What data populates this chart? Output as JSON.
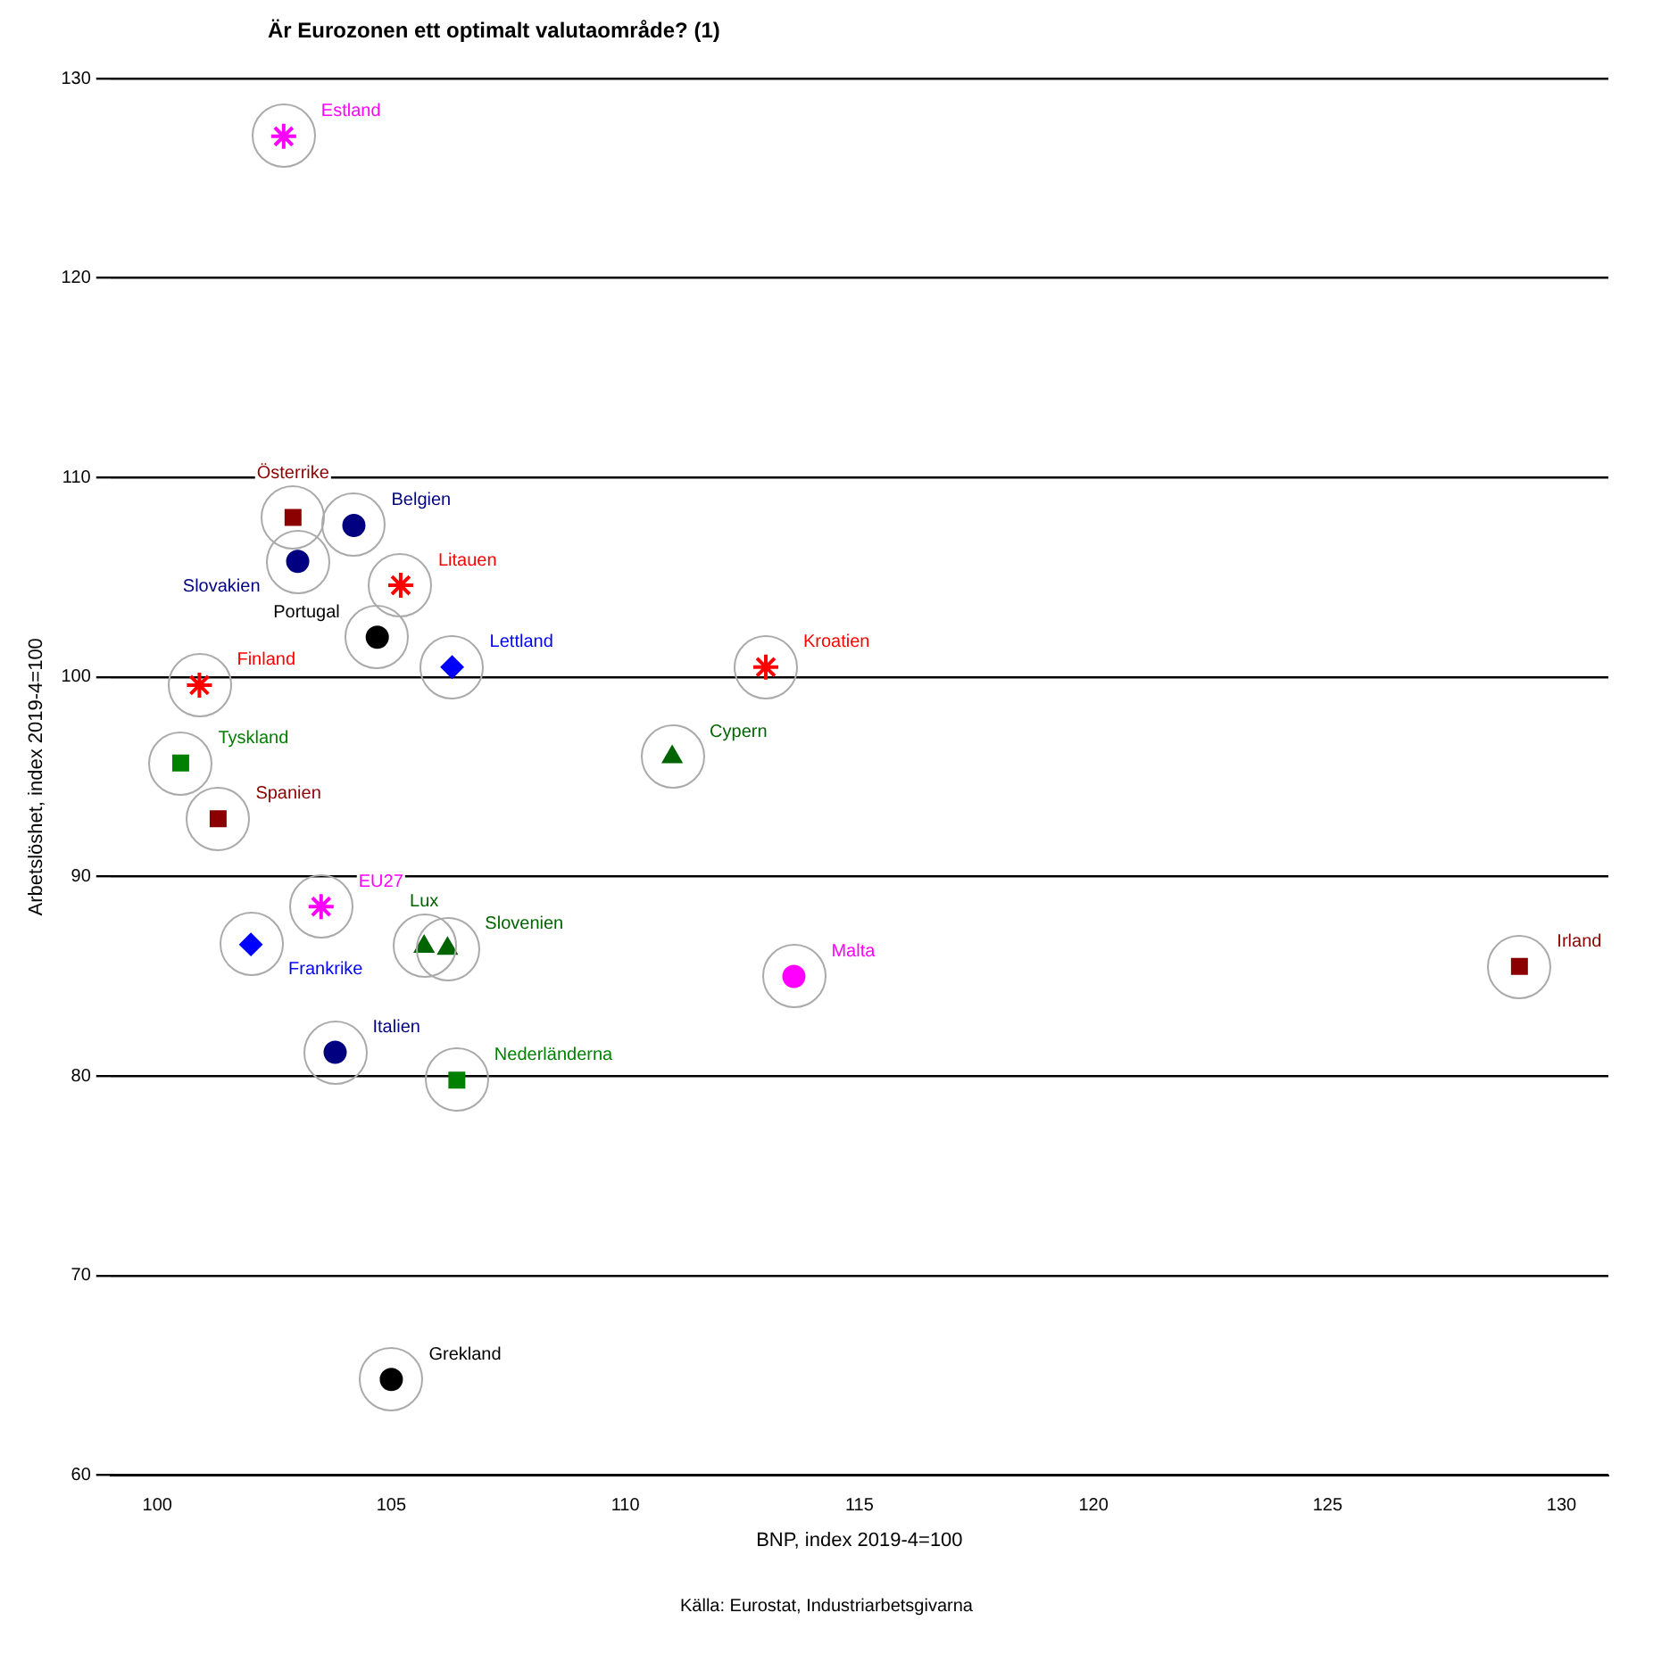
{
  "chart_data": {
    "type": "scatter",
    "title": "Är Eurozonen ett optimalt valutaområde? (1)",
    "xlabel": "BNP, index 2019-4=100",
    "ylabel": "Arbetslöshet, index 2019-4=100",
    "annotations": [
      "Källa: Eurostat, Industriarbetsgivarna"
    ],
    "xlim": [
      99,
      131
    ],
    "xticks": [
      100,
      105,
      110,
      115,
      120,
      125,
      130
    ],
    "ylim": [
      60,
      130
    ],
    "yticks": [
      60,
      70,
      80,
      90,
      100,
      110,
      120,
      130
    ],
    "grid": "y",
    "legend": false,
    "series": [
      {
        "name": "Estland",
        "color": "#ff00ff",
        "marker": "cross",
        "x": [
          102.7
        ],
        "values": [
          127.1
        ]
      },
      {
        "name": "Österrike",
        "color": "#8b0000",
        "marker": "square",
        "x": [
          102.9
        ],
        "values": [
          108.0
        ]
      },
      {
        "name": "Slovakien",
        "color": "#000080",
        "marker": "circle",
        "x": [
          103.0
        ],
        "values": [
          105.8
        ]
      },
      {
        "name": "Belgien",
        "color": "#000080",
        "marker": "circle",
        "x": [
          104.2
        ],
        "values": [
          107.6
        ]
      },
      {
        "name": "Litauen",
        "color": "#ff0000",
        "marker": "cross",
        "x": [
          105.2
        ],
        "values": [
          104.6
        ]
      },
      {
        "name": "Portugal",
        "color": "#000000",
        "marker": "circle",
        "x": [
          104.7
        ],
        "values": [
          102.0
        ]
      },
      {
        "name": "Lettland",
        "color": "#0000ff",
        "marker": "diamond",
        "x": [
          106.3
        ],
        "values": [
          100.5
        ]
      },
      {
        "name": "Kroatien",
        "color": "#ff0000",
        "marker": "cross",
        "x": [
          113.0
        ],
        "values": [
          100.5
        ]
      },
      {
        "name": "Finland",
        "color": "#ff0000",
        "marker": "cross",
        "x": [
          100.9
        ],
        "values": [
          99.6
        ]
      },
      {
        "name": "Cypern",
        "color": "#006400",
        "marker": "triangle",
        "x": [
          111.0
        ],
        "values": [
          96.0
        ]
      },
      {
        "name": "Tyskland",
        "color": "#008000",
        "marker": "square",
        "x": [
          100.5
        ],
        "values": [
          95.7
        ]
      },
      {
        "name": "Spanien",
        "color": "#8b0000",
        "marker": "square",
        "x": [
          101.3
        ],
        "values": [
          92.9
        ]
      },
      {
        "name": "EU27",
        "color": "#ff00ff",
        "marker": "cross",
        "x": [
          103.5
        ],
        "values": [
          88.5
        ]
      },
      {
        "name": "Frankrike",
        "color": "#0000ff",
        "marker": "diamond",
        "x": [
          102.0
        ],
        "values": [
          86.6
        ]
      },
      {
        "name": "Lux",
        "color": "#006400",
        "marker": "triangle",
        "x": [
          105.7
        ],
        "values": [
          86.5
        ]
      },
      {
        "name": "Slovenien",
        "color": "#006400",
        "marker": "triangle",
        "x": [
          106.2
        ],
        "values": [
          86.4
        ]
      },
      {
        "name": "Italien",
        "color": "#000080",
        "marker": "circle",
        "x": [
          103.8
        ],
        "values": [
          81.2
        ]
      },
      {
        "name": "Nederländerna",
        "color": "#008000",
        "marker": "square",
        "x": [
          106.4
        ],
        "values": [
          79.8
        ]
      },
      {
        "name": "Grekland",
        "color": "#000000",
        "marker": "circle",
        "x": [
          105.0
        ],
        "values": [
          64.8
        ]
      },
      {
        "name": "Irland",
        "color": "#8b0000",
        "marker": "square",
        "x": [
          129.1
        ],
        "values": [
          85.5
        ]
      },
      {
        "name": "Malta",
        "color": "#ff00ff",
        "marker": "circle",
        "x": [
          113.6
        ],
        "values": [
          85.0
        ]
      }
    ]
  }
}
